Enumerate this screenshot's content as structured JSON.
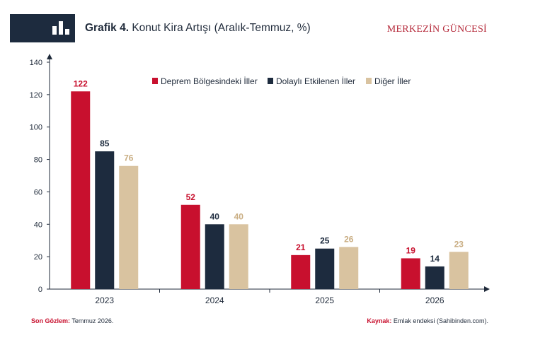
{
  "header": {
    "title_label": "Grafik 4.",
    "title_text": "Konut Kira Artışı (Aralık-Temmuz, %)",
    "brand": "MERKEZİN GÜNCESİ",
    "logo_icon": "bar-chart-icon"
  },
  "footer": {
    "left_key": "Son Gözlem:",
    "left_value": "Temmuz 2026.",
    "right_key": "Kaynak:",
    "right_value": "Emlak endeksi (Sahibinden.com)."
  },
  "chart_data": {
    "type": "bar",
    "categories": [
      "2023",
      "2024",
      "2025",
      "2026"
    ],
    "series": [
      {
        "name": "Deprem Bölgesindeki İller",
        "values": [
          122,
          52,
          21,
          19
        ],
        "color": "#c8102e"
      },
      {
        "name": "Dolaylı Etkilenen İller",
        "values": [
          85,
          40,
          25,
          14
        ],
        "color": "#1d2b3e"
      },
      {
        "name": "Diğer İller",
        "values": [
          76,
          40,
          26,
          23
        ],
        "color": "#d9c3a0"
      }
    ],
    "ylim": [
      0,
      140
    ],
    "yticks": [
      "0",
      "20",
      "40",
      "60",
      "80",
      "100",
      "120",
      "140"
    ],
    "legend_position": "top",
    "grid": false,
    "data_labels": true
  }
}
